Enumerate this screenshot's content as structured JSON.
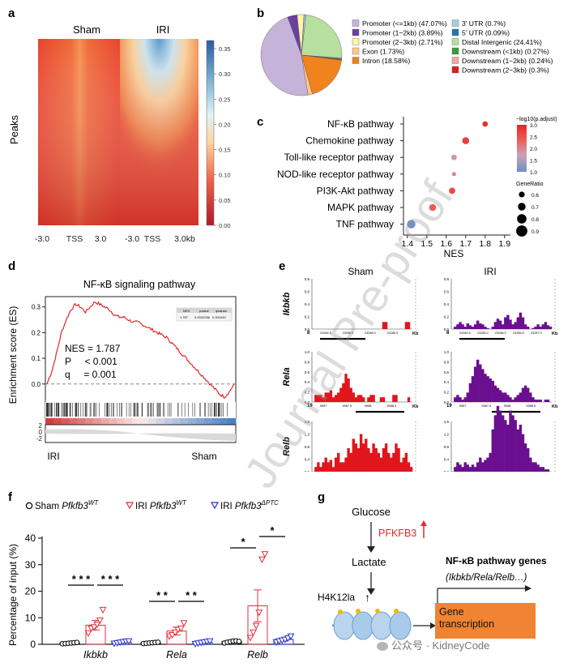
{
  "panels": {
    "a": "a",
    "b": "b",
    "c": "c",
    "d": "d",
    "e": "e",
    "f": "f",
    "g": "g"
  },
  "watermark": "Journal Pre-proof",
  "wechat": "公众号 · KidneyCode",
  "panel_a": {
    "col_sham": "Sham",
    "col_iri": "IRI",
    "ylabel": "Peaks",
    "xticks_sham": [
      "-3.0",
      "TSS",
      "3.0"
    ],
    "xticks_iri": [
      "-3.0",
      "TSS",
      "3.0kb"
    ],
    "colorbar_ticks": [
      "0.35",
      "0.30",
      "0.25",
      "0.20",
      "0.15",
      "0.10",
      "0.05",
      "0.00"
    ]
  },
  "chart_data": [
    {
      "type": "pie",
      "panel": "b",
      "slices": [
        {
          "label": "Promoter (<=1kb) (47.07%)",
          "value": 47.07,
          "color": "#c6b3da"
        },
        {
          "label": "Promoter (1−2kb) (3.89%)",
          "value": 3.89,
          "color": "#6b3fa0"
        },
        {
          "label": "Promoter (2−3kb) (2.71%)",
          "value": 2.71,
          "color": "#fff5a8"
        },
        {
          "label": "Exon (1.73%)",
          "value": 1.73,
          "color": "#fdc98a"
        },
        {
          "label": "Intron (18.58%)",
          "value": 18.58,
          "color": "#f0831e"
        },
        {
          "label": "3' UTR (0.7%)",
          "value": 0.7,
          "color": "#a6cde2"
        },
        {
          "label": "5' UTR (0.09%)",
          "value": 0.09,
          "color": "#2474b4"
        },
        {
          "label": "Distal Intergenic (24.41%)",
          "value": 24.41,
          "color": "#b7dfa0"
        },
        {
          "label": "Downstream (<1kb) (0.27%)",
          "value": 0.27,
          "color": "#3a9a3a"
        },
        {
          "label": "Downstream (1−2kb) (0.24%)",
          "value": 0.24,
          "color": "#f5a5a5"
        },
        {
          "label": "Downstream (2−3kb) (0.3%)",
          "value": 0.3,
          "color": "#e01c1c"
        }
      ]
    },
    {
      "type": "scatter",
      "panel": "c",
      "categories": [
        "NF-κB pathway",
        "Chemokine pathway",
        "Toll-like receptor  pathway",
        "NOD-like receptor  pathway",
        "PI3K-Akt pathway",
        "MAPK pathway",
        "TNF  pathway"
      ],
      "nes": [
        1.8,
        1.7,
        1.64,
        1.64,
        1.63,
        1.53,
        1.42
      ],
      "padj": [
        2.9,
        2.7,
        1.8,
        2.0,
        2.6,
        2.4,
        1.0
      ],
      "gene_ratio": [
        0.6,
        0.7,
        0.6,
        0.5,
        0.65,
        0.7,
        0.8
      ],
      "xlabel": "NES",
      "xticks": [
        "1.4",
        "1.5",
        "1.6",
        "1.7",
        "1.8",
        "1.9"
      ],
      "xlim": [
        1.38,
        1.93
      ],
      "legend_title_color": "−log10(p.adjust)",
      "color_ticks": [
        "3.0",
        "2.5",
        "2.0",
        "1.5",
        "1.0"
      ],
      "legend_title_size": "GeneRatio",
      "size_ticks": [
        "0.6",
        "0.7",
        "0.8",
        "0.9"
      ]
    },
    {
      "type": "line",
      "panel": "d",
      "title": "NF-κB signaling pathway",
      "ylabel": "Enrichment score (ES)",
      "yticks": [
        "0.3",
        "0.2",
        "0.1",
        "0.0"
      ],
      "ylim": [
        -0.07,
        0.34
      ],
      "stats": {
        "nes": "NES = 1.787",
        "p": "P     < 0.001",
        "q": "q     = 0.001"
      },
      "mini_table": {
        "headers": [
          "NES",
          "pvalue",
          "qvalues"
        ],
        "values": [
          "1.787",
          "0.0002256",
          "0.001049"
        ]
      },
      "x_left": "IRI",
      "x_right": "Sham",
      "rank_ticks": [
        "2",
        "0",
        "-2"
      ],
      "es": [
        0,
        0.05,
        0.12,
        0.2,
        0.25,
        0.29,
        0.31,
        0.3,
        0.28,
        0.3,
        0.32,
        0.31,
        0.3,
        0.29,
        0.27,
        0.26,
        0.26,
        0.25,
        0.24,
        0.24,
        0.23,
        0.22,
        0.21,
        0.2,
        0.19,
        0.18,
        0.16,
        0.14,
        0.12,
        0.1,
        0.08,
        0.06,
        0.04,
        0.02,
        0.0,
        -0.02,
        -0.04,
        -0.05,
        -0.03,
        0.0
      ]
    },
    {
      "type": "bar",
      "panel": "e",
      "col_sham": "Sham",
      "col_iri": "IRI",
      "tracks": [
        {
          "gene": "Ikbkb",
          "ymax": "0.8",
          "yticks": [
            "0.8",
            "0.6",
            "0.4",
            "0.2",
            "0.0"
          ],
          "xstart": "8",
          "xend": "Kb",
          "sham_ticks": [
            "23284.5",
            "23285.0",
            "23286.0",
            "23286.5"
          ],
          "iri_ticks": [
            "23284.5",
            "23285.0",
            "23286.0",
            "23286.5",
            "23287.0"
          ],
          "sham": [
            0,
            0,
            0,
            0,
            0,
            0,
            0,
            0,
            0,
            0,
            0,
            0,
            0,
            0,
            0,
            0,
            0,
            0,
            0,
            0,
            0,
            0,
            0,
            0,
            0,
            0,
            0,
            0,
            0.15,
            0.15,
            0,
            0,
            0,
            0,
            0,
            0,
            0,
            0.15,
            0.15,
            0
          ],
          "iri": [
            0,
            0.05,
            0.1,
            0.15,
            0.1,
            0.05,
            0.12,
            0.08,
            0.05,
            0.1,
            0.18,
            0.12,
            0.1,
            0.05,
            0.02,
            0,
            0.05,
            0.15,
            0.22,
            0.18,
            0.1,
            0.25,
            0.3,
            0.2,
            0.1,
            0.15,
            0.25,
            0.35,
            0.25,
            0.1,
            0.05,
            0,
            0.02,
            0.05,
            0.1,
            0.05,
            0.1,
            0.15,
            0.08,
            0.05
          ]
        },
        {
          "gene": "Rela",
          "ymax": "1.0",
          "yticks": [
            "1.0",
            "0.8",
            "0.6",
            "0.4",
            "0.2",
            "0.0"
          ],
          "xstart": "19",
          "xend": "Kb",
          "sham_ticks": [
            "5987",
            "5987.5",
            "5988",
            "5988.5"
          ],
          "iri_ticks": [
            "5987",
            "5987.5",
            "5988",
            "5988.5"
          ],
          "sham": [
            0,
            0.15,
            0.15,
            0.15,
            0.1,
            0.2,
            0.2,
            0.25,
            0.1,
            0.15,
            0.2,
            0.3,
            0.4,
            0.6,
            0.5,
            0.3,
            0.2,
            0.1,
            0.15,
            0.15,
            0.1,
            0,
            0.1,
            0.15,
            0.15,
            0,
            0,
            0.1,
            0.1,
            0,
            0,
            0,
            0.15,
            0.15,
            0,
            0,
            0,
            0,
            0.1,
            0
          ],
          "iri": [
            0,
            0.1,
            0.15,
            0.1,
            0.05,
            0.1,
            0.2,
            0.4,
            0.55,
            0.75,
            0.9,
            0.8,
            0.7,
            0.6,
            0.55,
            0.5,
            0.45,
            0.35,
            0.3,
            0.25,
            0.2,
            0.2,
            0.15,
            0.1,
            0.05,
            0.1,
            0.15,
            0.2,
            0.3,
            0.35,
            0.3,
            0.2,
            0.1,
            0.05,
            0.05,
            0.05,
            0,
            0.05,
            0.05,
            0
          ]
        },
        {
          "gene": "Relb",
          "ymax": "1.6",
          "yticks": [
            "1.6",
            "1.2",
            "0.8",
            "0.4",
            "0.0"
          ],
          "xstart": "7",
          "xend": "Kb",
          "sham_ticks": [
            "19361.5",
            "19362",
            "19362.5",
            "19363",
            "19363.5"
          ],
          "iri_ticks": [
            "19361.5",
            "19362",
            "19362.5",
            "19363",
            "19363.5"
          ],
          "sham": [
            0,
            0.1,
            0.2,
            0.1,
            0.2,
            0.3,
            0.2,
            0.25,
            0.1,
            0.3,
            0.4,
            0.2,
            0.2,
            0.3,
            0.5,
            0.4,
            0.7,
            0.6,
            0.5,
            0.8,
            0.6,
            0.7,
            0.5,
            0.4,
            0.6,
            0.5,
            0.4,
            0.3,
            0.5,
            0.6,
            0.4,
            0.3,
            0.4,
            0.6,
            0.5,
            0.2,
            0.3,
            0.4,
            0.2,
            0.1
          ],
          "iri": [
            0,
            0.1,
            0.2,
            0.15,
            0.1,
            0.2,
            0.15,
            0.1,
            0.15,
            0.1,
            0.2,
            0.3,
            0.2,
            0.25,
            0.3,
            0.4,
            0.9,
            1.2,
            1.4,
            1.3,
            1.2,
            1.1,
            1.0,
            1.3,
            1.2,
            1.1,
            0.9,
            1.0,
            0.8,
            0.6,
            0.5,
            0.3,
            0.2,
            0.2,
            0.15,
            0.1,
            0.1,
            0.05,
            0.05,
            0
          ]
        }
      ]
    },
    {
      "type": "bar",
      "panel": "f",
      "categories": [
        "Ikbkb",
        "Rela",
        "Relb"
      ],
      "ylabel": "Percentage of input (%)",
      "yticks": [
        "40",
        "30",
        "20",
        "10",
        "0"
      ],
      "ylim": [
        0,
        40
      ],
      "legend": [
        {
          "prefix": "Sham ",
          "gene": "Pfkfb3",
          "sup": "WT"
        },
        {
          "prefix": "IRI ",
          "gene": "Pfkfb3",
          "sup": "WT"
        },
        {
          "prefix": "IRI ",
          "gene": "Pfkfb3",
          "sup": "ΔPTC"
        }
      ],
      "series": [
        {
          "mean": [
            0.5,
            0.6,
            1.0
          ],
          "sem": [
            0,
            0,
            0
          ],
          "points": [
            [
              0.2,
              0.3,
              0.4,
              0.5,
              0.6,
              0.7
            ],
            [
              0.3,
              0.4,
              0.5,
              0.6,
              0.7,
              0.8
            ],
            [
              0.5,
              0.8,
              1.0,
              1.2,
              1.3,
              1.1
            ]
          ],
          "marker": "circle",
          "color": "#000000"
        },
        {
          "mean": [
            7.2,
            5.0,
            14.5
          ],
          "sem": [
            1.8,
            1.5,
            6.0
          ],
          "points": [
            [
              4.2,
              6.0,
              6.5,
              7.5,
              9.0,
              13.0
            ],
            [
              3.0,
              3.5,
              4.5,
              5.5,
              6.0,
              8.0
            ],
            [
              2.5,
              4.5,
              7.0,
              12.0,
              32.0,
              34.0
            ]
          ],
          "marker": "triangle-down",
          "color": "#e0303a"
        },
        {
          "mean": [
            0.8,
            0.7,
            1.8
          ],
          "sem": [
            0.2,
            0.2,
            0.6
          ],
          "points": [
            [
              0.3,
              0.5,
              0.7,
              0.9,
              1.1,
              1.2
            ],
            [
              0.2,
              0.4,
              0.6,
              0.8,
              1.0,
              1.2
            ],
            [
              0.8,
              1.2,
              1.5,
              1.8,
              2.3,
              3.0
            ]
          ],
          "marker": "triangle-down",
          "color": "#2a32c8"
        }
      ],
      "sig": {
        "ikbkb_a": "* * *",
        "ikbkb_b": "* * *",
        "rela_a": "* *",
        "rela_b": "* *",
        "relb_a": "*",
        "relb_b": "*"
      }
    }
  ],
  "panel_g": {
    "glucose": "Glucose",
    "pfkfb3": "PFKFB3",
    "lactate": "Lactate",
    "h4k12la": "H4K12la",
    "pathway": "NF-κB pathway genes",
    "genes": "(Ikbkb/Rela/Relb…)",
    "gene_transcription": "Gene transcription",
    "up_arrow": "↑"
  }
}
